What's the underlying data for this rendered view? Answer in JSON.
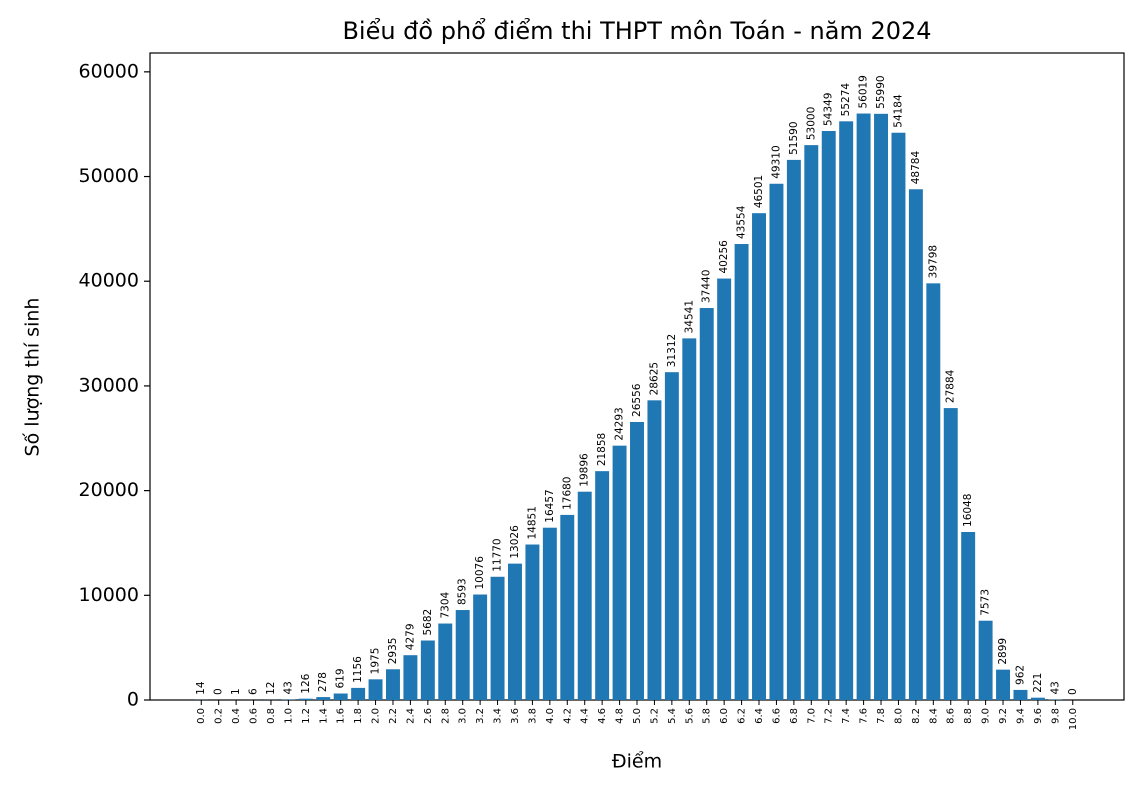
{
  "chart_data": {
    "type": "bar",
    "title": "Biểu đồ phổ điểm thi THPT môn Toán - năm 2024",
    "x_label": "Điểm",
    "y_label": "Số lượng thí sinh",
    "color": "#1f77b4",
    "categories": [
      "0.0",
      "0.2",
      "0.4",
      "0.6",
      "0.8",
      "1.0",
      "1.2",
      "1.4",
      "1.6",
      "1.8",
      "2.0",
      "2.2",
      "2.4",
      "2.6",
      "2.8",
      "3.0",
      "3.2",
      "3.4",
      "3.6",
      "3.8",
      "4.0",
      "4.2",
      "4.4",
      "4.6",
      "4.8",
      "5.0",
      "5.2",
      "5.4",
      "5.6",
      "5.8",
      "6.0",
      "6.2",
      "6.4",
      "6.6",
      "6.8",
      "7.0",
      "7.2",
      "7.4",
      "7.6",
      "7.8",
      "8.0",
      "8.2",
      "8.4",
      "8.6",
      "8.8",
      "9.0",
      "9.2",
      "9.4",
      "9.6",
      "9.8",
      "10.0"
    ],
    "values": [
      14,
      0,
      1,
      6,
      12,
      43,
      126,
      278,
      619,
      1156,
      1975,
      2935,
      4279,
      5682,
      7304,
      8593,
      10076,
      11770,
      13026,
      14851,
      16457,
      17680,
      19896,
      21858,
      24293,
      26556,
      28625,
      31312,
      34541,
      37440,
      40256,
      43554,
      46501,
      49310,
      51590,
      53000,
      54349,
      55274,
      56019,
      55990,
      54184,
      48784,
      39798,
      27884,
      16048,
      7573,
      2899,
      962,
      221,
      43,
      0
    ],
    "ylim": [
      0,
      61800
    ],
    "yticks": [
      0,
      10000,
      20000,
      30000,
      40000,
      50000,
      60000
    ],
    "grid": false
  }
}
